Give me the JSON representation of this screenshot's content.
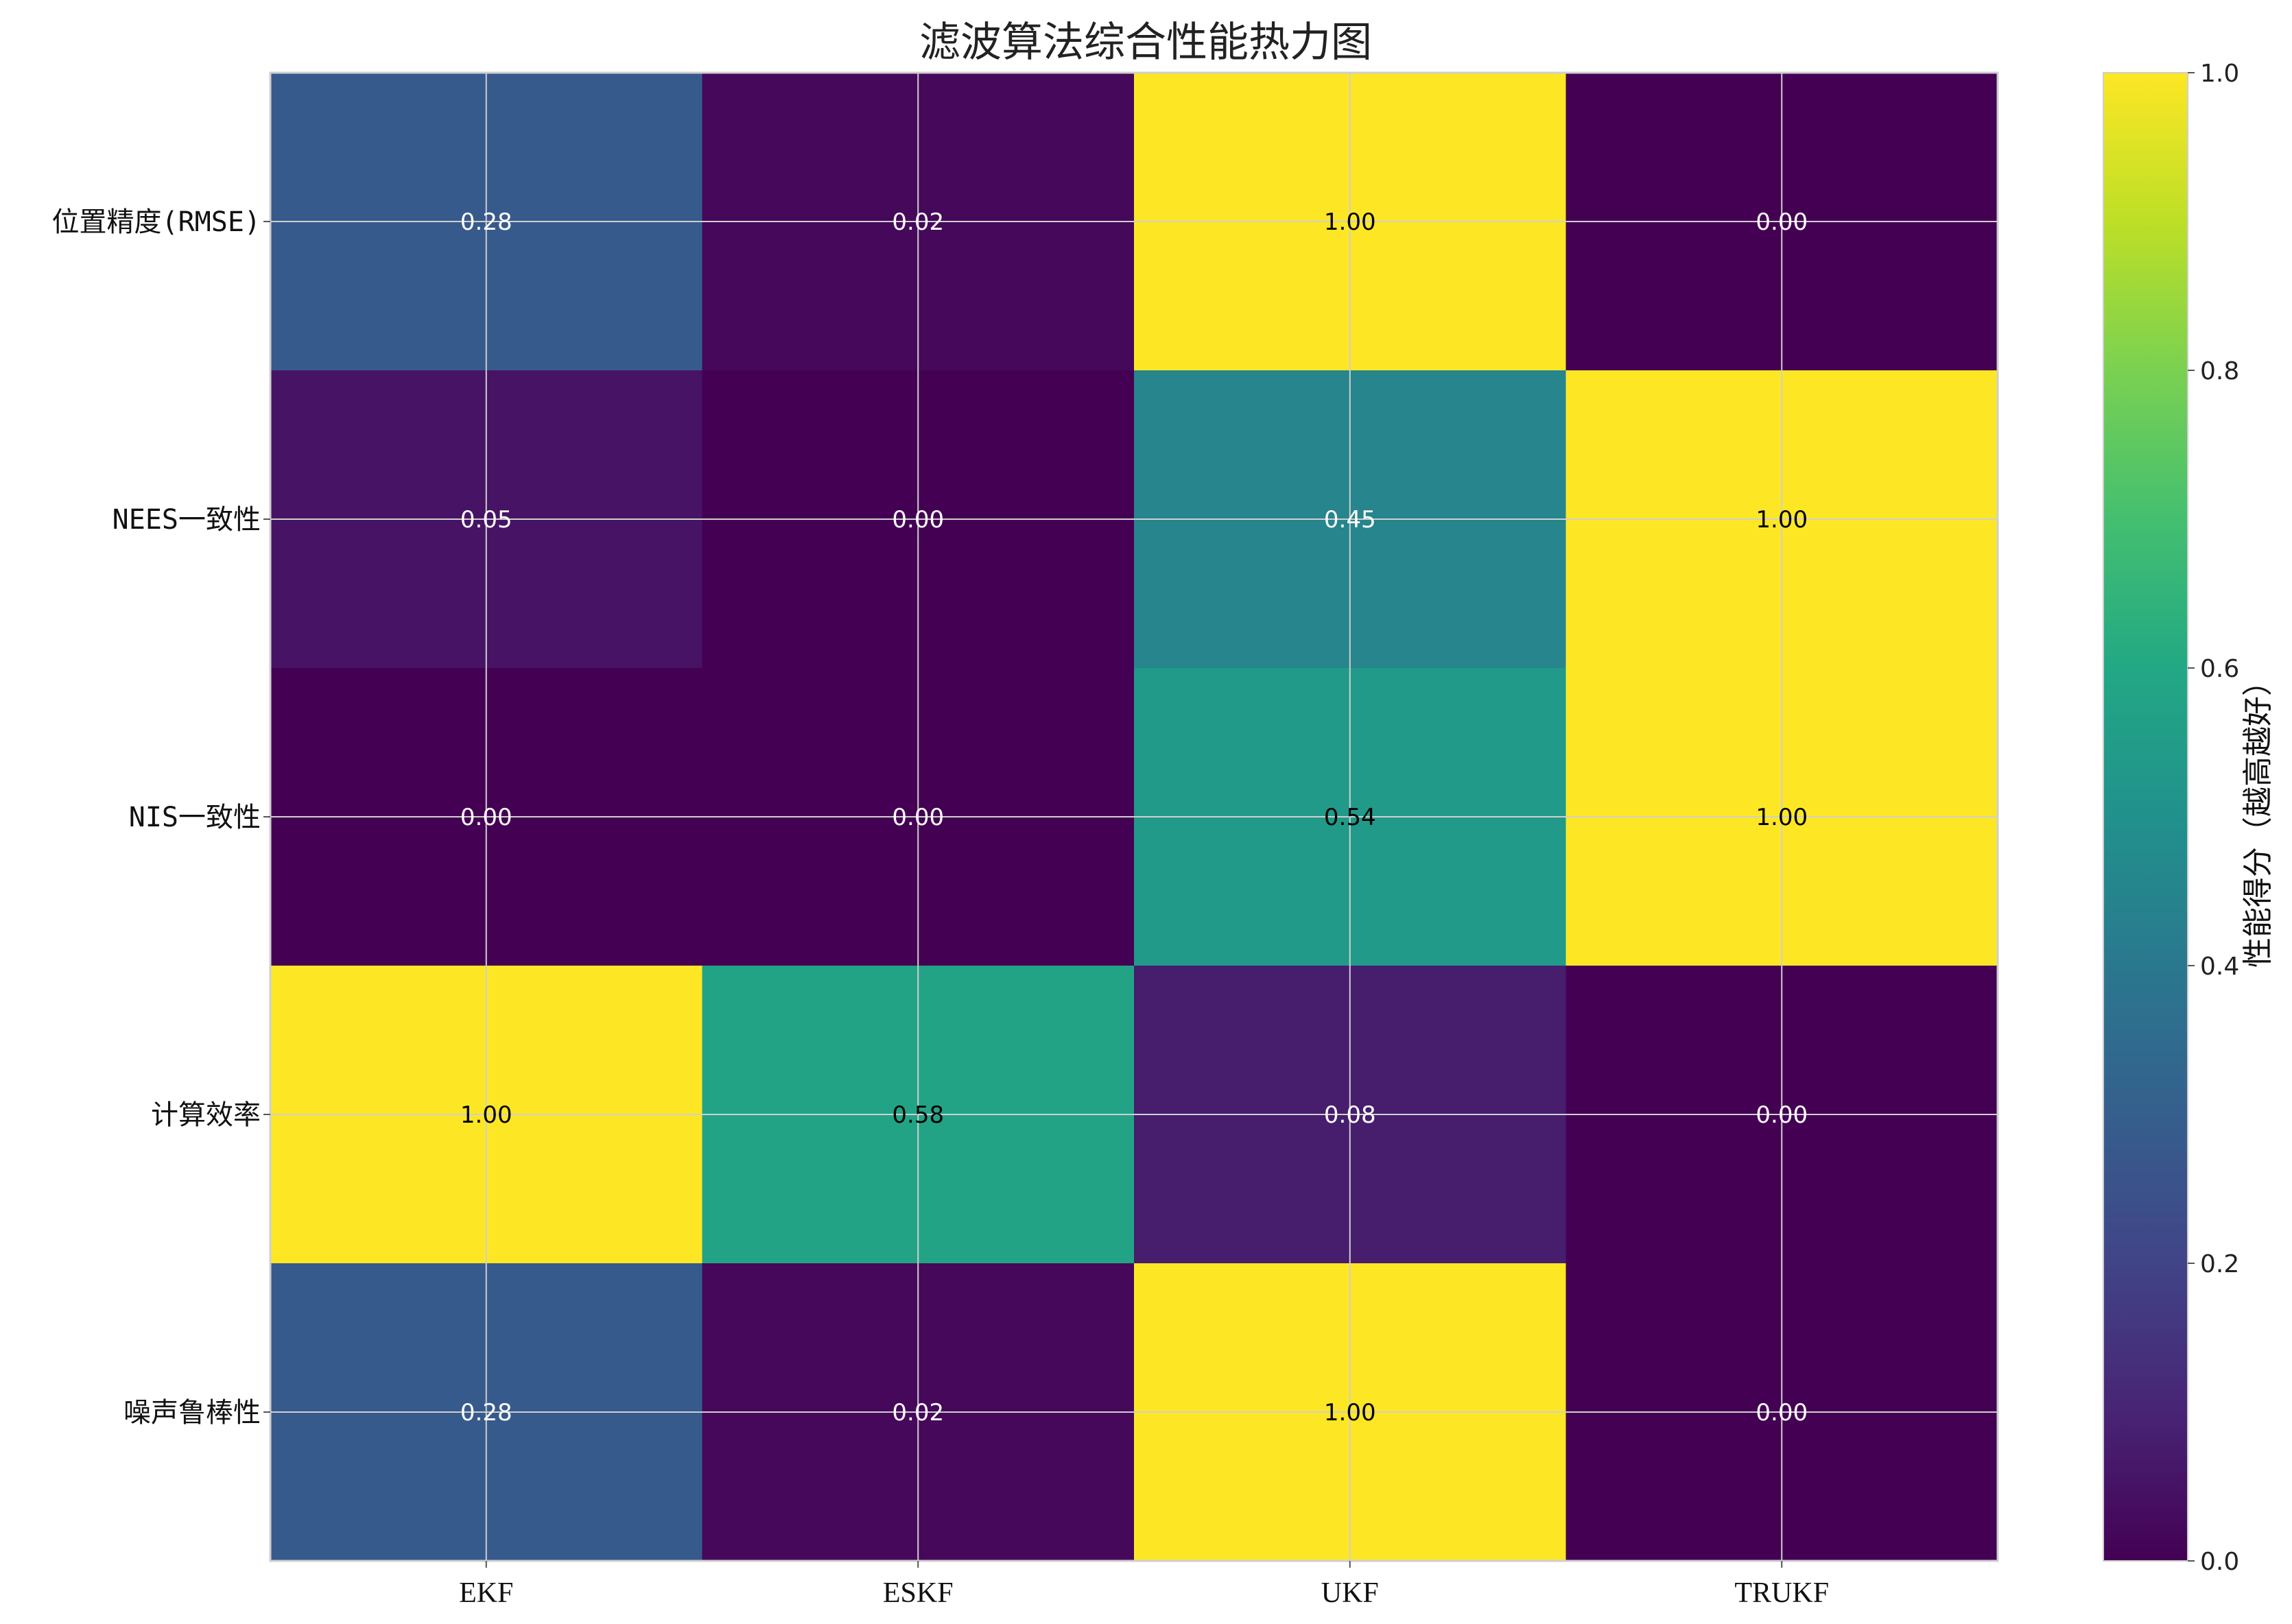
{
  "chart_data": {
    "type": "heatmap",
    "title": "滤波算法综合性能热力图",
    "columns": [
      "EKF",
      "ESKF",
      "UKF",
      "TRUKF"
    ],
    "rows": [
      "位置精度(RMSE)",
      "NEES一致性",
      "NIS一致性",
      "计算效率",
      "噪声鲁棒性"
    ],
    "values": [
      [
        0.28,
        0.02,
        1.0,
        0.0
      ],
      [
        0.05,
        0.0,
        0.45,
        1.0
      ],
      [
        0.0,
        0.0,
        0.54,
        1.0
      ],
      [
        1.0,
        0.58,
        0.08,
        0.0
      ],
      [
        0.28,
        0.02,
        1.0,
        0.0
      ]
    ],
    "value_labels": [
      [
        "0.28",
        "0.02",
        "1.00",
        "0.00"
      ],
      [
        "0.05",
        "0.00",
        "0.45",
        "1.00"
      ],
      [
        "0.00",
        "0.00",
        "0.54",
        "1.00"
      ],
      [
        "1.00",
        "0.58",
        "0.08",
        "0.00"
      ],
      [
        "0.28",
        "0.02",
        "1.00",
        "0.00"
      ]
    ],
    "colormap": "viridis",
    "colorbar": {
      "label": "性能得分（越高越好）",
      "range": [
        0.0,
        1.0
      ],
      "ticks": [
        0.0,
        0.2,
        0.4,
        0.6,
        0.8,
        1.0
      ],
      "tick_labels": [
        "0.0",
        "0.2",
        "0.4",
        "0.6",
        "0.8",
        "1.0"
      ]
    },
    "grid": true,
    "colors": {
      "grid": "#cfcfcf",
      "label_on_dark": "#ffffff",
      "label_on_light": "#000000"
    }
  }
}
